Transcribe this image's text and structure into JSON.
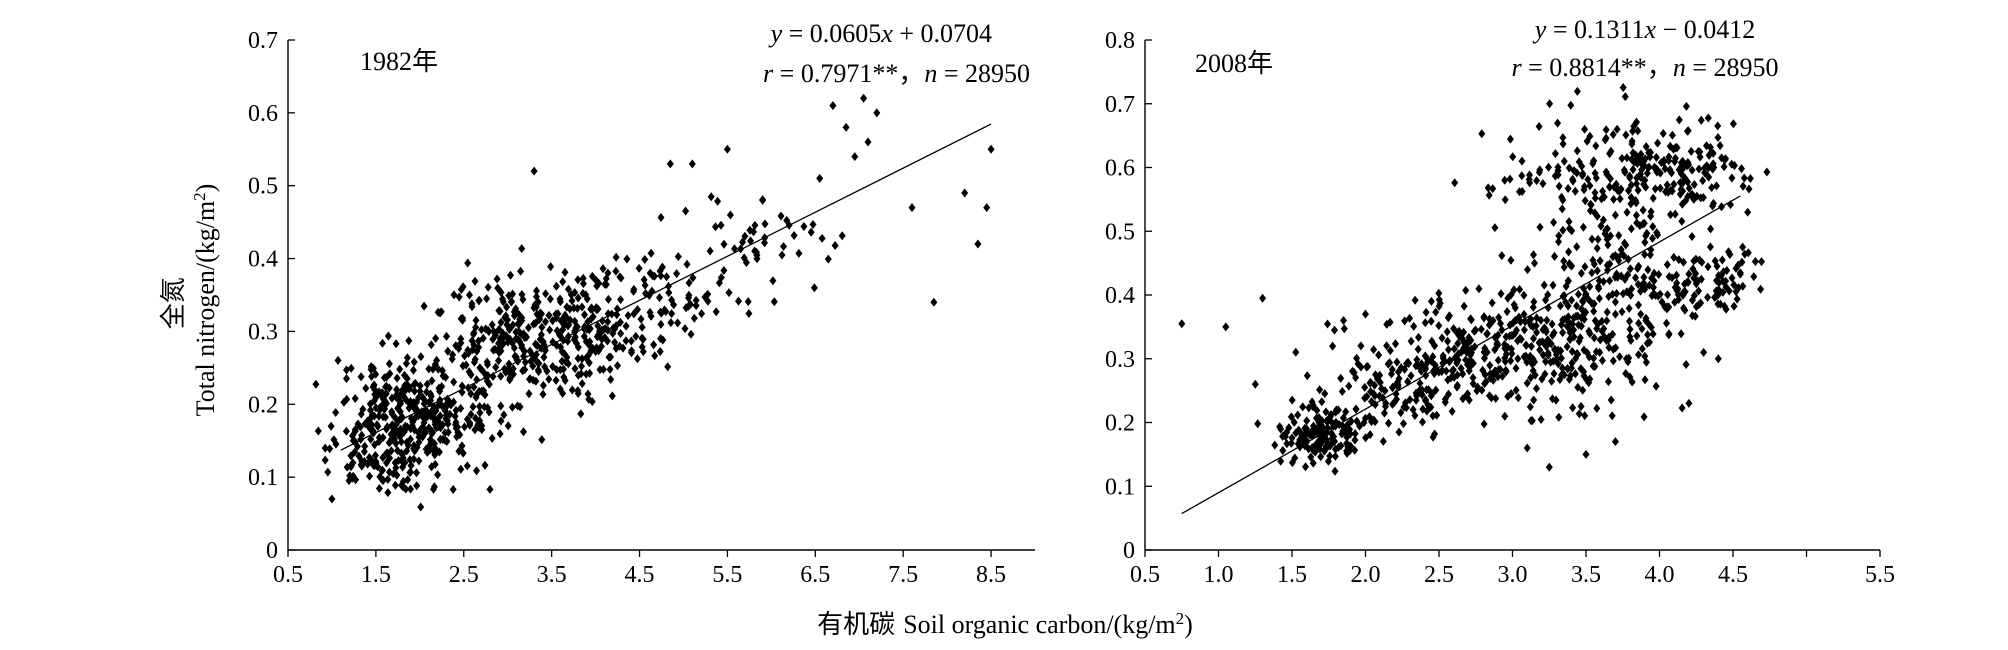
{
  "figure": {
    "ylabel_cn": "全氮",
    "ylabel_en": "Total nitrogen/(kg/m",
    "ylabel_sup": "2",
    "ylabel_end": ")",
    "xlabel_cn": "有机碳",
    "xlabel_en": "Soil organic carbon/(kg/m",
    "xlabel_sup": "2",
    "xlabel_end": ")"
  },
  "chart_data": [
    {
      "type": "scatter",
      "panel_label": "1982年",
      "xlim": [
        0.5,
        9.0
      ],
      "ylim": [
        0,
        0.7
      ],
      "x_ticks": [
        "0.5",
        "1.5",
        "2.5",
        "3.5",
        "4.5",
        "5.5",
        "6.5",
        "7.5",
        "8.5"
      ],
      "y_ticks": [
        "0",
        "0.1",
        "0.2",
        "0.3",
        "0.4",
        "0.5",
        "0.6",
        "0.7"
      ],
      "grid": false,
      "regression": {
        "slope": 0.0605,
        "intercept": 0.0704,
        "x_range": [
          1.1,
          8.5
        ]
      },
      "eq": {
        "y": "y",
        "eq_rest": " = 0.0605",
        "x": "x",
        "tail": " + 0.0704"
      },
      "stats": {
        "r": "r",
        "r_rest": " = 0.7971**，",
        "n": "n",
        "n_rest": " = 28950"
      },
      "n_points": 28950,
      "clusters": [
        {
          "cx": 1.7,
          "cy": 0.175,
          "sx": 0.35,
          "sy": 0.05,
          "n": 260
        },
        {
          "cx": 2.2,
          "cy": 0.18,
          "sx": 0.35,
          "sy": 0.045,
          "n": 140
        },
        {
          "cx": 3.1,
          "cy": 0.28,
          "sx": 0.45,
          "sy": 0.045,
          "n": 260
        },
        {
          "cx": 3.9,
          "cy": 0.31,
          "sx": 0.4,
          "sy": 0.04,
          "n": 150
        },
        {
          "cx": 4.8,
          "cy": 0.34,
          "sx": 0.45,
          "sy": 0.035,
          "n": 70
        },
        {
          "cx": 6.0,
          "cy": 0.42,
          "sx": 0.6,
          "sy": 0.035,
          "n": 45
        }
      ],
      "outliers": [
        [
          6.7,
          0.61
        ],
        [
          6.85,
          0.58
        ],
        [
          7.05,
          0.62
        ],
        [
          7.2,
          0.6
        ],
        [
          7.1,
          0.56
        ],
        [
          6.95,
          0.54
        ],
        [
          7.85,
          0.34
        ],
        [
          8.35,
          0.42
        ],
        [
          8.5,
          0.55
        ],
        [
          8.45,
          0.47
        ],
        [
          3.3,
          0.52
        ],
        [
          5.1,
          0.53
        ],
        [
          4.85,
          0.53
        ],
        [
          5.5,
          0.55
        ],
        [
          8.2,
          0.49
        ],
        [
          7.6,
          0.47
        ],
        [
          6.55,
          0.51
        ],
        [
          5.9,
          0.48
        ],
        [
          1.0,
          0.07
        ]
      ]
    },
    {
      "type": "scatter",
      "panel_label": "2008年",
      "xlim": [
        0.5,
        5.5
      ],
      "ylim": [
        0,
        0.8
      ],
      "x_ticks": [
        "0.5",
        "1.0",
        "1.5",
        "2.0",
        "2.5",
        "3.0",
        "3.5",
        "4.0",
        "4.5",
        "5.5"
      ],
      "y_ticks": [
        "0",
        "0.1",
        "0.2",
        "0.3",
        "0.4",
        "0.5",
        "0.6",
        "0.7",
        "0.8"
      ],
      "grid": false,
      "regression": {
        "slope": 0.1311,
        "intercept": -0.0412,
        "x_range": [
          0.75,
          4.55
        ]
      },
      "eq": {
        "y": "y",
        "eq_rest": " = 0.1311",
        "x": "x",
        "tail": " − 0.0412"
      },
      "stats": {
        "r": "r",
        "r_rest": " = 0.8814**，",
        "n": "n",
        "n_rest": " = 28950"
      },
      "n_points": 28950,
      "clusters": [
        {
          "cx": 1.7,
          "cy": 0.18,
          "sx": 0.15,
          "sy": 0.025,
          "n": 160
        },
        {
          "cx": 2.3,
          "cy": 0.27,
          "sx": 0.3,
          "sy": 0.04,
          "n": 170
        },
        {
          "cx": 3.0,
          "cy": 0.32,
          "sx": 0.35,
          "sy": 0.045,
          "n": 260
        },
        {
          "cx": 3.6,
          "cy": 0.38,
          "sx": 0.25,
          "sy": 0.07,
          "n": 200
        },
        {
          "cx": 3.7,
          "cy": 0.58,
          "sx": 0.4,
          "sy": 0.05,
          "n": 210
        },
        {
          "cx": 4.2,
          "cy": 0.42,
          "sx": 0.25,
          "sy": 0.03,
          "n": 110
        },
        {
          "cx": 4.2,
          "cy": 0.6,
          "sx": 0.2,
          "sy": 0.03,
          "n": 80
        }
      ],
      "outliers": [
        [
          0.75,
          0.355
        ],
        [
          1.05,
          0.35
        ],
        [
          1.3,
          0.395
        ],
        [
          1.25,
          0.26
        ],
        [
          3.25,
          0.13
        ],
        [
          3.1,
          0.16
        ],
        [
          3.5,
          0.15
        ],
        [
          3.7,
          0.17
        ],
        [
          4.2,
          0.23
        ],
        [
          4.4,
          0.3
        ],
        [
          4.3,
          0.31
        ],
        [
          1.85,
          0.36
        ],
        [
          2.0,
          0.37
        ],
        [
          4.55,
          0.435
        ]
      ]
    }
  ]
}
